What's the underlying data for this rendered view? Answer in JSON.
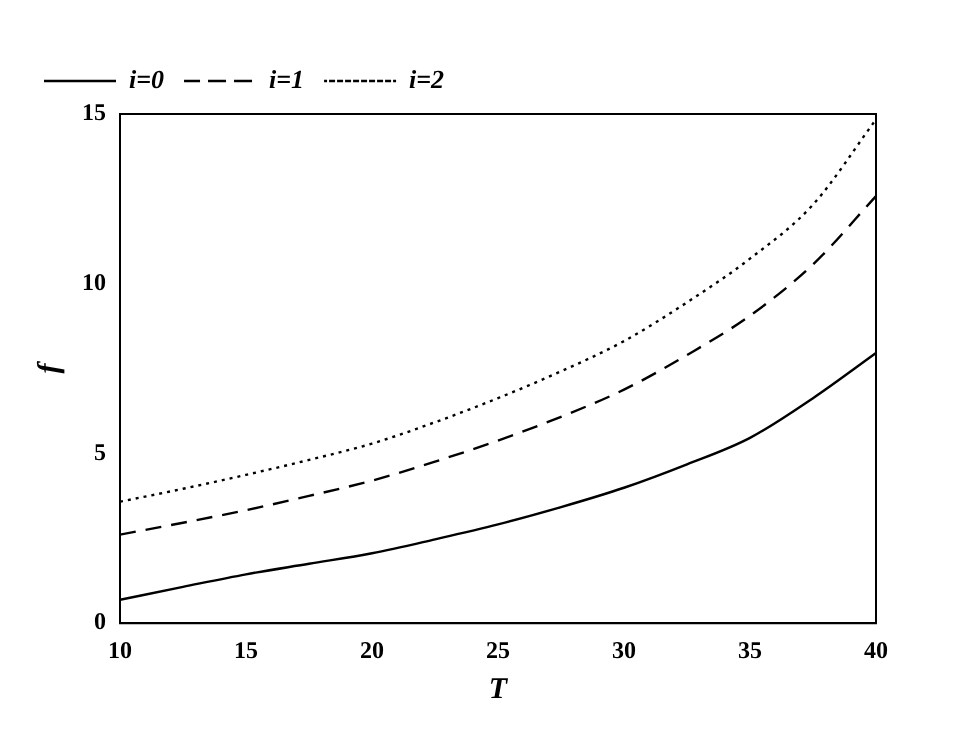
{
  "chart_data": {
    "type": "line",
    "xlabel": "T",
    "ylabel": "f",
    "xlim": [
      10,
      40
    ],
    "ylim": [
      0,
      15
    ],
    "xticks": [
      10,
      15,
      20,
      25,
      30,
      35,
      40
    ],
    "yticks": [
      0,
      5,
      10,
      15
    ],
    "grid": false,
    "legend": "top left",
    "marker": "none",
    "x": [
      10,
      12.5,
      15,
      17.5,
      20,
      22.5,
      25,
      27.5,
      30,
      32.5,
      35,
      37.5,
      40
    ],
    "series": [
      {
        "name": "i=0",
        "color": "#000000",
        "line_style": "solid",
        "values": [
          0.69,
          1.07,
          1.44,
          1.75,
          2.06,
          2.47,
          2.91,
          3.42,
          3.99,
          4.68,
          5.46,
          6.63,
          7.96
        ]
      },
      {
        "name": "i=1",
        "color": "#000000",
        "line_style": "dashed",
        "values": [
          2.61,
          2.96,
          3.33,
          3.75,
          4.2,
          4.76,
          5.38,
          6.08,
          6.88,
          7.9,
          9.06,
          10.57,
          12.58
        ]
      },
      {
        "name": "i=2",
        "color": "#000000",
        "line_style": "dotted",
        "values": [
          3.58,
          3.96,
          4.37,
          4.81,
          5.29,
          5.92,
          6.63,
          7.42,
          8.31,
          9.45,
          10.74,
          12.33,
          14.84
        ]
      }
    ]
  }
}
